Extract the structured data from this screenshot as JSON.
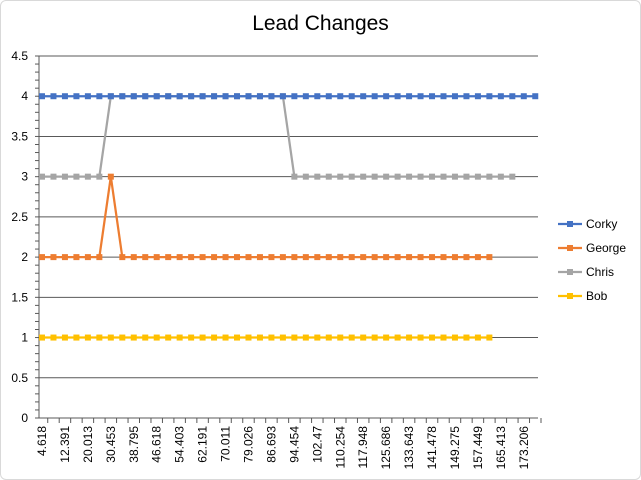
{
  "chart_data": {
    "type": "line",
    "title": "Lead Changes",
    "xlabel": "",
    "ylabel": "",
    "ylim": [
      0,
      4.5
    ],
    "y_ticks": [
      "0",
      "0.5",
      "1",
      "1.5",
      "2",
      "2.5",
      "3",
      "3.5",
      "4",
      "4.5"
    ],
    "x_tick_labels": [
      "4.618",
      "12.391",
      "20.013",
      "30.453",
      "38.795",
      "46.618",
      "54.403",
      "62.191",
      "70.011",
      "79.026",
      "86.693",
      "94.454",
      "102.47",
      "110.254",
      "117.948",
      "125.686",
      "133.643",
      "141.478",
      "149.275",
      "157.449",
      "165.413",
      "173.206"
    ],
    "grid": true,
    "legend_position": "right",
    "series": [
      {
        "name": "Corky",
        "color": "#4472c4",
        "values": [
          4,
          4,
          4,
          4,
          4,
          4,
          4,
          4,
          4,
          4,
          4,
          4,
          4,
          4,
          4,
          4,
          4,
          4,
          4,
          4,
          4,
          4,
          4,
          4,
          4,
          4,
          4,
          4,
          4,
          4,
          4,
          4,
          4,
          4,
          4,
          4,
          4,
          4,
          4,
          4,
          4,
          4,
          4,
          4
        ]
      },
      {
        "name": "George",
        "color": "#ed7d31",
        "values": [
          2,
          2,
          2,
          2,
          2,
          2,
          3,
          2,
          2,
          2,
          2,
          2,
          2,
          2,
          2,
          2,
          2,
          2,
          2,
          2,
          2,
          2,
          2,
          2,
          2,
          2,
          2,
          2,
          2,
          2,
          2,
          2,
          2,
          2,
          2,
          2,
          2,
          2,
          2,
          2,
          null,
          null,
          null,
          null
        ]
      },
      {
        "name": "Chris",
        "color": "#a5a5a5",
        "values": [
          3,
          3,
          3,
          3,
          3,
          3,
          4,
          4,
          4,
          4,
          4,
          4,
          4,
          4,
          4,
          4,
          4,
          4,
          4,
          4,
          4,
          4,
          3,
          3,
          3,
          3,
          3,
          3,
          3,
          3,
          3,
          3,
          3,
          3,
          3,
          3,
          3,
          3,
          3,
          3,
          3,
          3,
          null,
          null
        ]
      },
      {
        "name": "Bob",
        "color": "#ffc000",
        "values": [
          1,
          1,
          1,
          1,
          1,
          1,
          1,
          1,
          1,
          1,
          1,
          1,
          1,
          1,
          1,
          1,
          1,
          1,
          1,
          1,
          1,
          1,
          1,
          1,
          1,
          1,
          1,
          1,
          1,
          1,
          1,
          1,
          1,
          1,
          1,
          1,
          1,
          1,
          1,
          1,
          null,
          null,
          null,
          null
        ]
      }
    ]
  }
}
